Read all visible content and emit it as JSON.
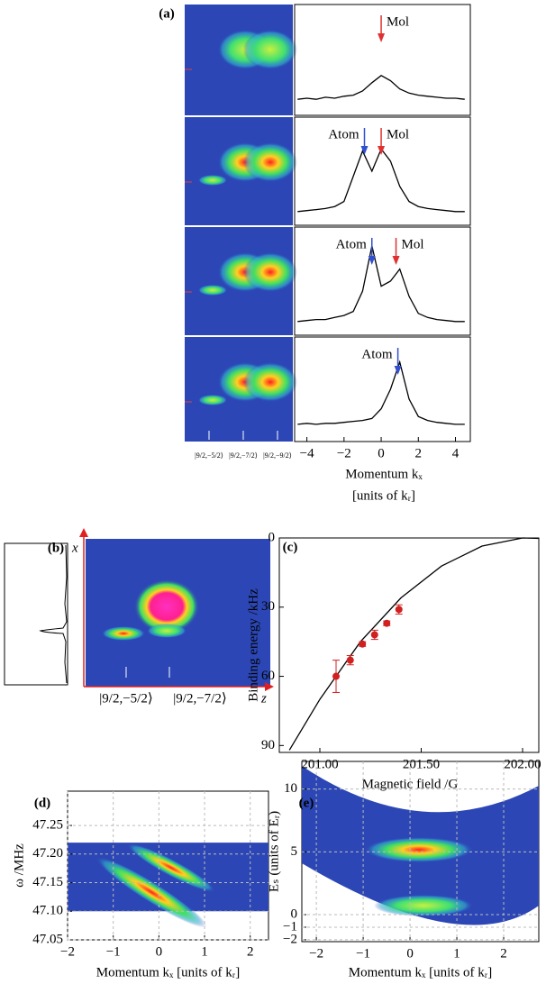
{
  "chart_data": [
    {
      "type": "line",
      "label": "(a)",
      "xlabel": "Momentum kₓ",
      "xlabel2": "[units of kᵣ]",
      "state_labels": [
        "|9/2,−5/2⟩",
        "|9/2,−7/2⟩",
        "|9/2,−9/2⟩"
      ],
      "x": [
        -4.5,
        -4,
        -3.5,
        -3,
        -2.5,
        -2,
        -1.5,
        -1,
        -0.5,
        0,
        0.5,
        1,
        1.5,
        2,
        2.5,
        3,
        3.5,
        4,
        4.5
      ],
      "xlim": [
        -4.66,
        4.8
      ],
      "ylim": [
        0,
        1
      ],
      "xticks": [
        {
          "value": -4,
          "label": "−4"
        },
        {
          "value": -2,
          "label": "−2"
        },
        0,
        2,
        4
      ],
      "series": [
        {
          "color": "#000000",
          "values": [
            0.12,
            0.13,
            0.12,
            0.14,
            0.13,
            0.15,
            0.16,
            0.2,
            0.28,
            0.35,
            0.3,
            0.22,
            0.18,
            0.16,
            0.15,
            0.14,
            0.13,
            0.13,
            0.12
          ],
          "annotations": [
            {
              "text": "Mol",
              "x": 0,
              "color": "#e03030",
              "side": "right"
            }
          ]
        },
        {
          "color": "#000000",
          "values": [
            0.1,
            0.11,
            0.12,
            0.13,
            0.15,
            0.2,
            0.45,
            0.7,
            0.5,
            0.72,
            0.6,
            0.35,
            0.2,
            0.15,
            0.13,
            0.12,
            0.11,
            0.1,
            0.1
          ],
          "annotations": [
            {
              "text": "Atom",
              "x": -0.9,
              "color": "#3050d0",
              "side": "left"
            },
            {
              "text": "Mol",
              "x": 0,
              "color": "#e03030",
              "side": "right"
            }
          ]
        },
        {
          "color": "#000000",
          "values": [
            0.1,
            0.11,
            0.12,
            0.12,
            0.14,
            0.16,
            0.2,
            0.4,
            0.85,
            0.45,
            0.5,
            0.62,
            0.35,
            0.18,
            0.14,
            0.12,
            0.11,
            0.1,
            0.1
          ],
          "annotations": [
            {
              "text": "Atom",
              "x": -0.5,
              "color": "#3050d0",
              "side": "left"
            },
            {
              "text": "Mol",
              "x": 0.8,
              "color": "#e03030",
              "side": "right"
            }
          ]
        },
        {
          "color": "#000000",
          "values": [
            0.14,
            0.15,
            0.14,
            0.15,
            0.15,
            0.16,
            0.17,
            0.18,
            0.2,
            0.3,
            0.5,
            0.78,
            0.4,
            0.22,
            0.18,
            0.16,
            0.15,
            0.14,
            0.14
          ],
          "annotations": [
            {
              "text": "Atom",
              "x": 0.9,
              "color": "#3050d0",
              "side": "left"
            }
          ]
        }
      ]
    },
    {
      "type": "image",
      "label": "(b)",
      "ylabel": "x",
      "xlabel": "z",
      "state_labels": [
        "|9/2,−5/2⟩",
        "|9/2,−7/2⟩"
      ]
    },
    {
      "type": "scatter",
      "label": "(c)",
      "xlabel": "Magnetic field /G",
      "ylabel": "Binding energy /kHz",
      "xlim": [
        200.8,
        202.08
      ],
      "ylim": [
        93,
        0
      ],
      "xticks": [
        {
          "value": 201,
          "label": "201.00"
        },
        {
          "value": 201.5,
          "label": "201.50"
        },
        {
          "value": 202,
          "label": "202.00"
        }
      ],
      "yticks": [
        0,
        30,
        60,
        90
      ],
      "series": [
        {
          "color": "#d02020",
          "x": [
            201.08,
            201.15,
            201.21,
            201.27,
            201.33,
            201.39
          ],
          "values": [
            60,
            53,
            46,
            42,
            37,
            31
          ],
          "errors": [
            7,
            2,
            1,
            2,
            1,
            2
          ]
        }
      ],
      "fit": {
        "color": "#000000",
        "x": [
          200.85,
          201.0,
          201.2,
          201.4,
          201.6,
          201.8,
          202.0,
          202.08
        ],
        "values": [
          92,
          70,
          45,
          26,
          12.2,
          3.5,
          0,
          0.2
        ]
      }
    },
    {
      "type": "heatmap",
      "label": "(d)",
      "xlabel": "Momentum kₓ [units of kᵣ]",
      "ylabel": "ω /MHz",
      "xlim": [
        -2,
        2.4
      ],
      "ylim": [
        47.05,
        47.31
      ],
      "xticks": [
        {
          "value": -2,
          "label": "−2"
        },
        {
          "value": -1,
          "label": "−1"
        },
        0,
        1,
        2
      ],
      "yticks": [
        47.05,
        {
          "value": 47.1,
          "label": "47.10"
        },
        47.15,
        {
          "value": 47.2,
          "label": "47.20"
        },
        47.25
      ],
      "image_ylim": [
        47.1,
        47.22
      ],
      "grid": true
    },
    {
      "type": "heatmap",
      "label": "(e)",
      "xlabel": "Momentum kₓ [units of kᵣ]",
      "ylabel": "Eₛ (units of Eᵣ)",
      "xlim": [
        -2.31,
        2.75
      ],
      "ylim": [
        -2.15,
        12.2
      ],
      "xticks": [
        {
          "value": -2,
          "label": "−2"
        },
        {
          "value": -1,
          "label": "−1"
        },
        0,
        1,
        2
      ],
      "yticks": [
        {
          "value": -2,
          "label": "−2"
        },
        {
          "value": -1,
          "label": "−1"
        },
        0,
        5,
        10
      ],
      "grid": true
    }
  ]
}
